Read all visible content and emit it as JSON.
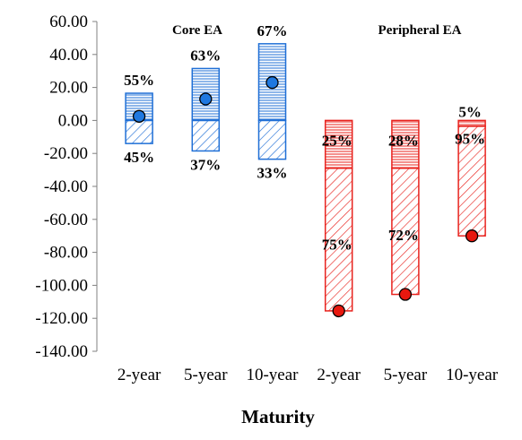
{
  "chart_data": {
    "type": "bar",
    "xlabel": "Maturity",
    "ylabel": "",
    "ylim": [
      -140,
      60
    ],
    "ytick_step": 20,
    "ytick_labels": [
      "60.00",
      "40.00",
      "20.00",
      "0.00",
      "-20.00",
      "-40.00",
      "-60.00",
      "-80.00",
      "-100.00",
      "-120.00",
      "-140.00"
    ],
    "grid": false,
    "legend": "none",
    "groups": [
      {
        "label": "Core EA",
        "color": "#1f6fd6",
        "dot_color": "#1f78e0"
      },
      {
        "label": "Peripheral EA",
        "color": "#e8231e",
        "dot_color": "#e8180f"
      }
    ],
    "categories": [
      "2-year",
      "5-year",
      "10-year",
      "2-year",
      "5-year",
      "10-year"
    ],
    "bars": [
      {
        "group": 0,
        "category": "2-year",
        "positive": 16.5,
        "negative": -14,
        "total": 2.5,
        "pct_positive": "55%",
        "pct_negative": "45%"
      },
      {
        "group": 0,
        "category": "5-year",
        "positive": 31.5,
        "negative": -18.5,
        "total": 13,
        "pct_positive": "63%",
        "pct_negative": "37%"
      },
      {
        "group": 0,
        "category": "10-year",
        "positive": 46.5,
        "negative": -23.5,
        "total": 23,
        "pct_positive": "67%",
        "pct_negative": "33%"
      },
      {
        "group": 1,
        "category": "2-year",
        "positive": 0,
        "upper_negative": -29,
        "negative": -115.5,
        "total": -115.5,
        "pct_positive": "25%",
        "pct_negative": "75%"
      },
      {
        "group": 1,
        "category": "5-year",
        "positive": 0,
        "upper_negative": -29,
        "negative": -105.5,
        "total": -105.5,
        "pct_positive": "28%",
        "pct_negative": "72%"
      },
      {
        "group": 1,
        "category": "10-year",
        "positive": 0,
        "upper_negative": -3.5,
        "negative": -70,
        "total": -70,
        "pct_positive": "5%",
        "pct_negative": "95%"
      }
    ]
  }
}
